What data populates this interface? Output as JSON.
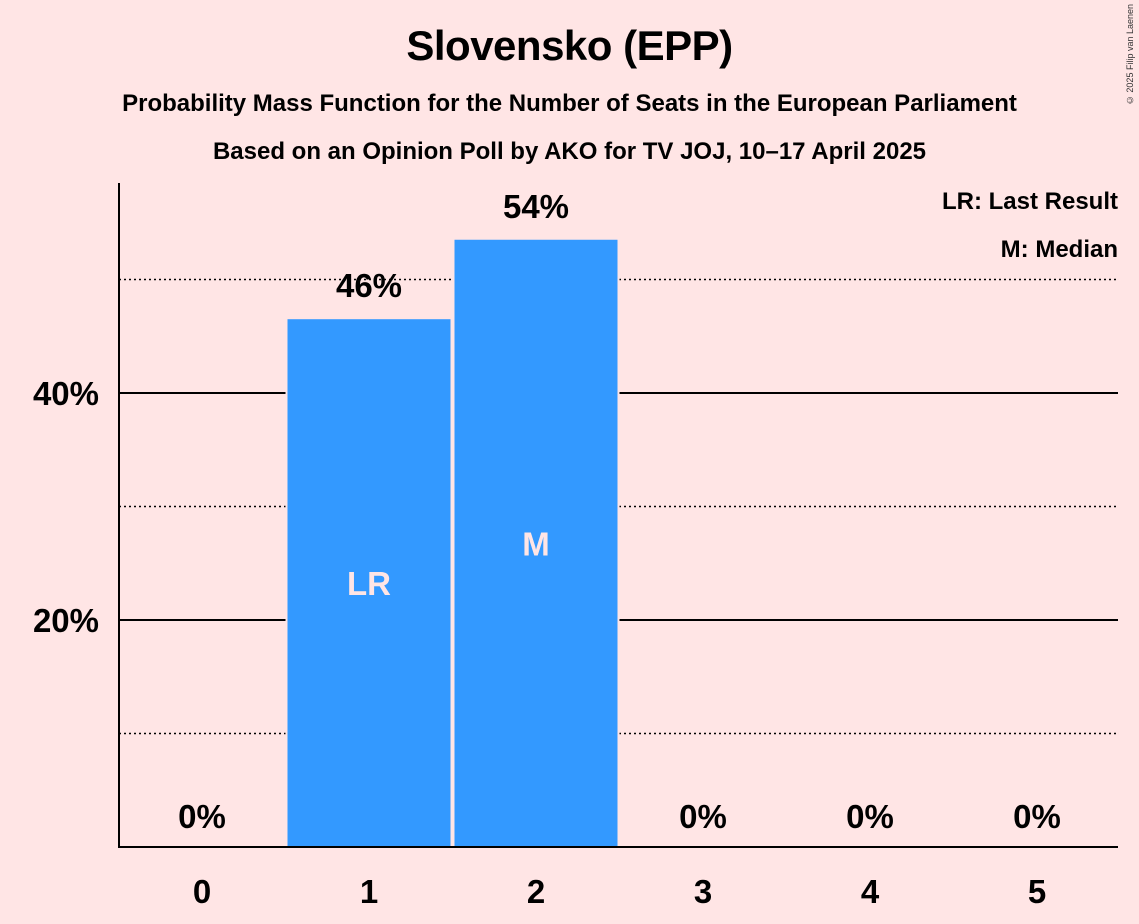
{
  "title": "Slovensko (EPP)",
  "subtitle_1": "Probability Mass Function for the Number of Seats in the European Parliament",
  "subtitle_2": "Based on an Opinion Poll by AKO for TV JOJ, 10–17 April 2025",
  "copyright": "© 2025 Filip van Laenen",
  "legend": {
    "last_result": "LR: Last Result",
    "median": "M: Median"
  },
  "colors": {
    "background": "#FFE5E5",
    "bar": "#3399FF"
  },
  "chart_data": {
    "type": "bar",
    "categories": [
      "0",
      "1",
      "2",
      "3",
      "4",
      "5"
    ],
    "values": [
      0,
      46.5,
      53.5,
      0,
      0,
      0
    ],
    "data_labels": [
      "0%",
      "46%",
      "54%",
      "0%",
      "0%",
      "0%"
    ],
    "bar_markers": [
      "",
      "LR",
      "M",
      "",
      "",
      ""
    ],
    "y_ticks": [
      {
        "value": 20,
        "label": "20%"
      },
      {
        "value": 40,
        "label": "40%"
      }
    ],
    "minor_gridlines": [
      10,
      30,
      50
    ],
    "ylim": [
      0,
      58.5
    ],
    "legend_position": "top-right"
  }
}
